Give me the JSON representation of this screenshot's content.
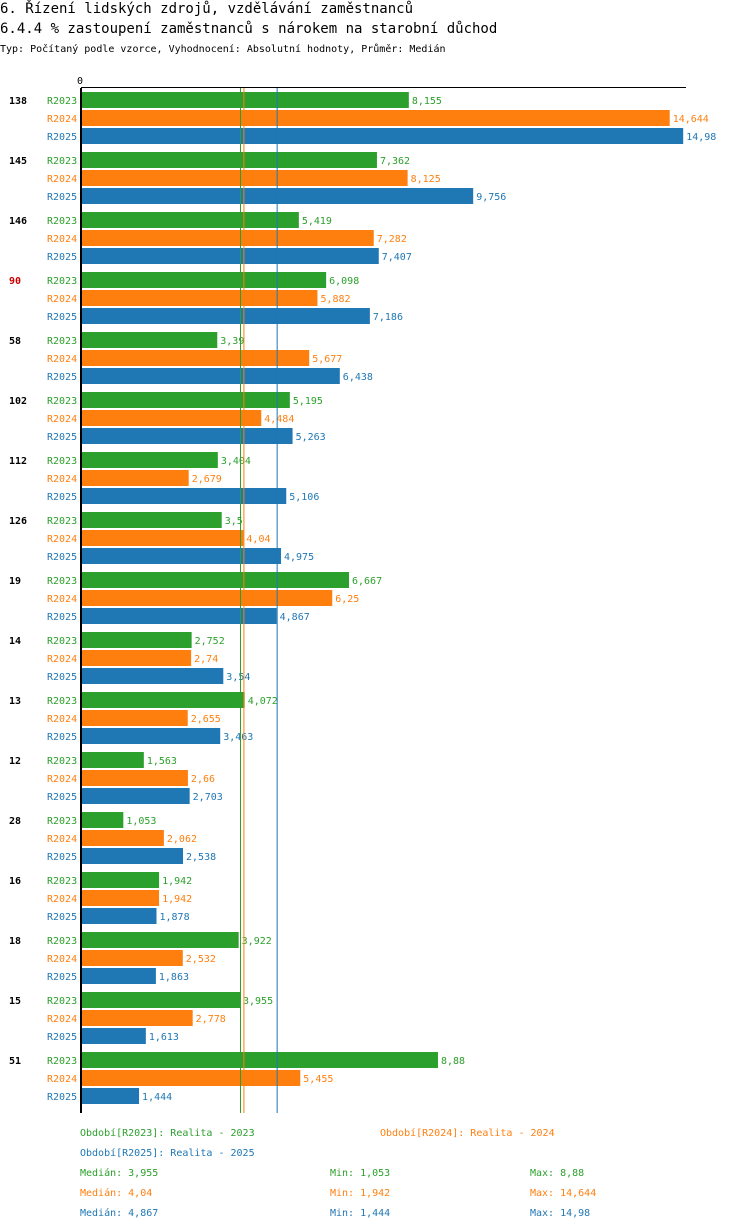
{
  "header": {
    "title": "6. Řízení lidských zdrojů, vzdělávání zaměstnanců",
    "subtitle": "6.4.4 % zastoupení zaměstnanců s nárokem na starobní důchod",
    "info": "Typ: Počítaný podle vzorce, Vyhodnocení: Absolutní hodnoty, Průměr: Medián"
  },
  "colors": {
    "R2023": "#2ca02c",
    "R2024": "#ff7f0e",
    "R2025": "#1f77b4",
    "highlight": "#cc0000",
    "axis": "#000000"
  },
  "chart_data": {
    "type": "bar",
    "orientation": "horizontal",
    "axis_zero_label": "0",
    "xlim": [
      0,
      14.98
    ],
    "series_names": [
      "R2023",
      "R2024",
      "R2025"
    ],
    "highlighted_category": "90",
    "categories": [
      {
        "label": "138",
        "values": [
          "8,155",
          "14,644",
          "14,98"
        ]
      },
      {
        "label": "145",
        "values": [
          "7,362",
          "8,125",
          "9,756"
        ]
      },
      {
        "label": "146",
        "values": [
          "5,419",
          "7,282",
          "7,407"
        ]
      },
      {
        "label": "90",
        "values": [
          "6,098",
          "5,882",
          "7,186"
        ]
      },
      {
        "label": "58",
        "values": [
          "3,39",
          "5,677",
          "6,438"
        ]
      },
      {
        "label": "102",
        "values": [
          "5,195",
          "4,484",
          "5,263"
        ]
      },
      {
        "label": "112",
        "values": [
          "3,404",
          "2,679",
          "5,106"
        ]
      },
      {
        "label": "126",
        "values": [
          "3,5",
          "4,04",
          "4,975"
        ]
      },
      {
        "label": "19",
        "values": [
          "6,667",
          "6,25",
          "4,867"
        ]
      },
      {
        "label": "14",
        "values": [
          "2,752",
          "2,74",
          "3,54"
        ]
      },
      {
        "label": "13",
        "values": [
          "4,072",
          "2,655",
          "3,463"
        ]
      },
      {
        "label": "12",
        "values": [
          "1,563",
          "2,66",
          "2,703"
        ]
      },
      {
        "label": "28",
        "values": [
          "1,053",
          "2,062",
          "2,538"
        ]
      },
      {
        "label": "16",
        "values": [
          "1,942",
          "1,942",
          "1,878"
        ]
      },
      {
        "label": "18",
        "values": [
          "3,922",
          "2,532",
          "1,863"
        ]
      },
      {
        "label": "15",
        "values": [
          "3,955",
          "2,778",
          "1,613"
        ]
      },
      {
        "label": "51",
        "values": [
          "8,88",
          "5,455",
          "1,444"
        ]
      }
    ],
    "medians": {
      "R2023": 3.955,
      "R2024": 4.04,
      "R2025": 4.867
    }
  },
  "footer": {
    "legend": [
      {
        "series": "R2023",
        "text": "Období[R2023]: Realita - 2023"
      },
      {
        "series": "R2024",
        "text": "Období[R2024]: Realita - 2024"
      },
      {
        "series": "R2025",
        "text": "Období[R2025]: Realita - 2025"
      }
    ],
    "stats": [
      {
        "series": "R2023",
        "median": "Medián: 3,955",
        "min": "Min: 1,053",
        "max": "Max: 8,88"
      },
      {
        "series": "R2024",
        "median": "Medián: 4,04",
        "min": "Min: 1,942",
        "max": "Max: 14,644"
      },
      {
        "series": "R2025",
        "median": "Medián: 4,867",
        "min": "Min: 1,444",
        "max": "Max: 14,98"
      }
    ]
  }
}
